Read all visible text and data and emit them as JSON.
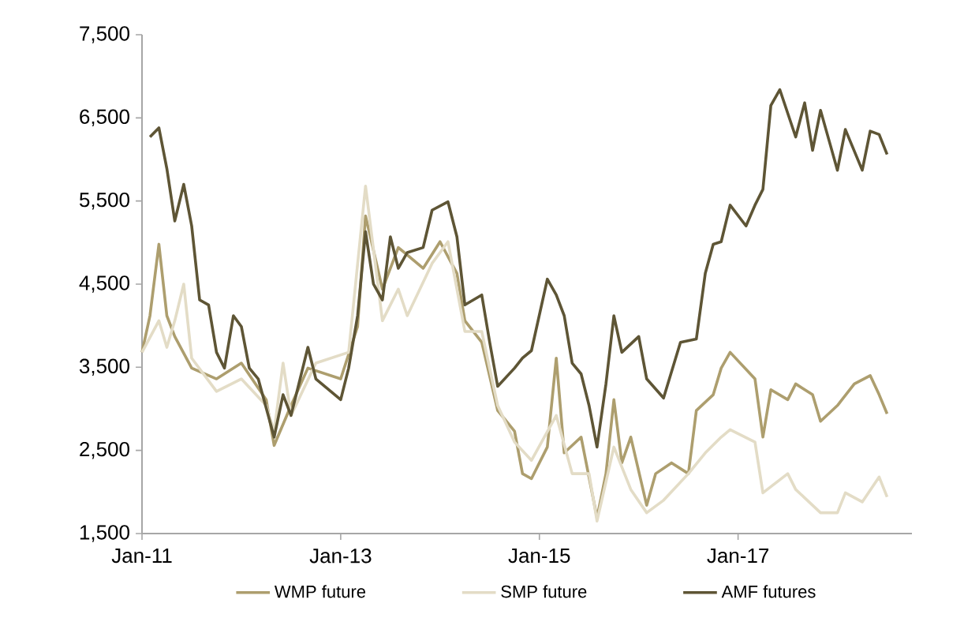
{
  "chart_data": {
    "type": "line",
    "xlim": [
      "2011-01",
      "2018-10"
    ],
    "xticks": [
      {
        "value": "2011-01",
        "label": "Jan-11"
      },
      {
        "value": "2013-01",
        "label": "Jan-13"
      },
      {
        "value": "2015-01",
        "label": "Jan-15"
      },
      {
        "value": "2017-01",
        "label": "Jan-17"
      }
    ],
    "ylim": [
      1500,
      7500
    ],
    "yticks": [
      {
        "value": 1500,
        "label": "1,500"
      },
      {
        "value": 2500,
        "label": "2,500"
      },
      {
        "value": 3500,
        "label": "3,500"
      },
      {
        "value": 4500,
        "label": "4,500"
      },
      {
        "value": 5500,
        "label": "5,500"
      },
      {
        "value": 6500,
        "label": "6,500"
      },
      {
        "value": 7500,
        "label": "7,500"
      }
    ],
    "grid": false,
    "legend": "bottom",
    "marker": "none",
    "line_style": "solid",
    "series": [
      {
        "name": "WMP future",
        "color": "#ad9e6e",
        "x": [
          "2011-01",
          "2011-02",
          "2011-03",
          "2011-04",
          "2011-05",
          "2011-07",
          "2011-10",
          "2012-01",
          "2012-04",
          "2012-05",
          "2012-07",
          "2012-09",
          "2013-01",
          "2013-03",
          "2013-04",
          "2013-06",
          "2013-08",
          "2013-11",
          "2014-01",
          "2014-03",
          "2014-04",
          "2014-06",
          "2014-08",
          "2014-10",
          "2014-11",
          "2014-12",
          "2015-02",
          "2015-03",
          "2015-04",
          "2015-06",
          "2015-08",
          "2015-09",
          "2015-10",
          "2015-11",
          "2015-12",
          "2016-02",
          "2016-03",
          "2016-05",
          "2016-07",
          "2016-08",
          "2016-10",
          "2016-11",
          "2016-12",
          "2017-03",
          "2017-04",
          "2017-05",
          "2017-07",
          "2017-08",
          "2017-10",
          "2017-11",
          "2018-01",
          "2018-03",
          "2018-05",
          "2018-06",
          "2018-07"
        ],
        "values": [
          3680,
          4120,
          4980,
          4120,
          3870,
          3490,
          3360,
          3550,
          3110,
          2560,
          3040,
          3490,
          3360,
          3990,
          5320,
          4440,
          4940,
          4690,
          5010,
          4630,
          4060,
          3800,
          2980,
          2730,
          2220,
          2160,
          2540,
          3610,
          2470,
          2660,
          1690,
          2220,
          3110,
          2350,
          2660,
          1840,
          2220,
          2350,
          2220,
          2980,
          3170,
          3490,
          3680,
          3360,
          2660,
          3230,
          3110,
          3300,
          3170,
          2850,
          3040,
          3300,
          3400,
          3170,
          2940
        ]
      },
      {
        "name": "SMP future",
        "color": "#e3dcc6",
        "x": [
          "2011-01",
          "2011-03",
          "2011-04",
          "2011-05",
          "2011-06",
          "2011-07",
          "2011-10",
          "2012-01",
          "2012-04",
          "2012-05",
          "2012-06",
          "2012-07",
          "2012-10",
          "2013-02",
          "2013-04",
          "2013-06",
          "2013-08",
          "2013-09",
          "2013-12",
          "2014-02",
          "2014-04",
          "2014-06",
          "2014-08",
          "2014-10",
          "2014-12",
          "2015-03",
          "2015-05",
          "2015-07",
          "2015-08",
          "2015-10",
          "2015-12",
          "2016-02",
          "2016-04",
          "2016-07",
          "2016-09",
          "2016-11",
          "2016-12",
          "2017-03",
          "2017-04",
          "2017-07",
          "2017-08",
          "2017-11",
          "2018-01",
          "2018-02",
          "2018-04",
          "2018-06",
          "2018-07"
        ],
        "values": [
          3680,
          4060,
          3740,
          4060,
          4500,
          3610,
          3210,
          3360,
          3040,
          2730,
          3550,
          2920,
          3550,
          3680,
          5680,
          4060,
          4440,
          4120,
          4750,
          5010,
          3930,
          3930,
          3040,
          2600,
          2380,
          2920,
          2220,
          2220,
          1650,
          2540,
          2030,
          1750,
          1900,
          2220,
          2470,
          2660,
          2750,
          2600,
          1990,
          2220,
          2030,
          1750,
          1750,
          1990,
          1880,
          2180,
          1940
        ]
      },
      {
        "name": "AMF futures",
        "color": "#5e5535",
        "x": [
          "2011-02",
          "2011-03",
          "2011-04",
          "2011-05",
          "2011-06",
          "2011-07",
          "2011-08",
          "2011-09",
          "2011-10",
          "2011-11",
          "2011-12",
          "2012-01",
          "2012-02",
          "2012-03",
          "2012-05",
          "2012-06",
          "2012-07",
          "2012-09",
          "2012-10",
          "2013-01",
          "2013-02",
          "2013-03",
          "2013-04",
          "2013-05",
          "2013-06",
          "2013-07",
          "2013-08",
          "2013-09",
          "2013-11",
          "2013-12",
          "2014-02",
          "2014-03",
          "2014-04",
          "2014-06",
          "2014-07",
          "2014-08",
          "2014-10",
          "2014-11",
          "2014-12",
          "2015-02",
          "2015-03",
          "2015-04",
          "2015-05",
          "2015-06",
          "2015-07",
          "2015-08",
          "2015-09",
          "2015-10",
          "2015-11",
          "2016-01",
          "2016-02",
          "2016-04",
          "2016-06",
          "2016-08",
          "2016-09",
          "2016-10",
          "2016-11",
          "2016-12",
          "2017-02",
          "2017-03",
          "2017-04",
          "2017-05",
          "2017-06",
          "2017-08",
          "2017-09",
          "2017-10",
          "2017-11",
          "2017-12",
          "2018-01",
          "2018-02",
          "2018-04",
          "2018-05",
          "2018-06",
          "2018-07"
        ],
        "values": [
          6270,
          6380,
          5890,
          5260,
          5700,
          5200,
          4310,
          4250,
          3680,
          3490,
          4120,
          3990,
          3490,
          3360,
          2660,
          3170,
          2920,
          3740,
          3360,
          3110,
          3490,
          4120,
          5130,
          4500,
          4310,
          5070,
          4690,
          4880,
          4940,
          5390,
          5490,
          5070,
          4250,
          4370,
          3800,
          3270,
          3490,
          3610,
          3700,
          4560,
          4370,
          4120,
          3550,
          3420,
          3040,
          2540,
          3300,
          4120,
          3680,
          3870,
          3360,
          3130,
          3800,
          3840,
          4630,
          4980,
          5010,
          5450,
          5200,
          5450,
          5640,
          6650,
          6840,
          6270,
          6680,
          6110,
          6590,
          6210,
          5870,
          6360,
          5870,
          6340,
          6300,
          6060
        ]
      }
    ]
  }
}
